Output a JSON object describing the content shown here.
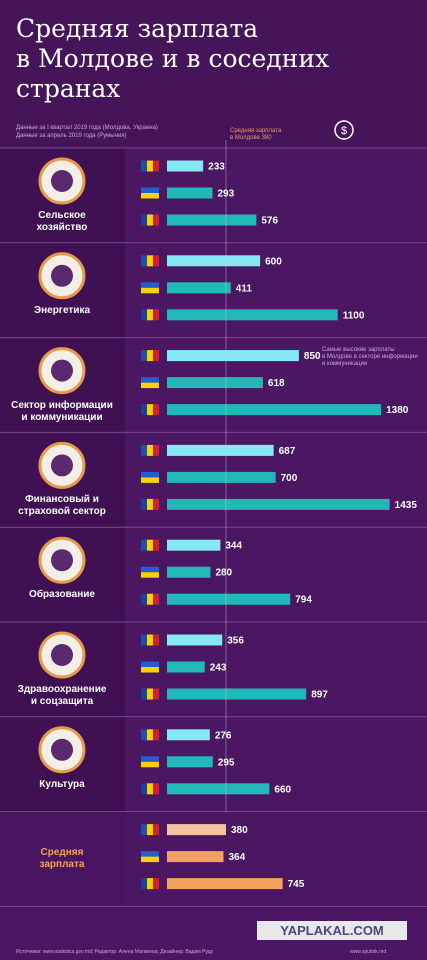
{
  "chart_data": {
    "type": "hbar-groups",
    "title": "Средняя зарплата\nв Молдове и в соседних\nстранах",
    "subtitles": [
      "Данные за I квартал 2019 года (Молдова, Украина)",
      "Данные за апрель 2019 года (Румыния)"
    ],
    "categories": [
      "Сельское\nхозяйство",
      "Энергетика",
      "Сектор информации\nи коммуникации",
      "Финансовый и\nстраховой сектор",
      "Образование",
      "Здравоохранение\nи соцзащита",
      "Культура",
      "Средняя\nзарплата"
    ],
    "series": [
      {
        "values": [
          233,
          600,
          850,
          687,
          344,
          356,
          276,
          380
        ],
        "colors": [
          "#86e8f2",
          "#86e8f2",
          "#86e8f2",
          "#86e8f2",
          "#86e8f2",
          "#86e8f2",
          "#86e8f2",
          "#f6c2a6"
        ]
      },
      {
        "values": [
          293,
          411,
          618,
          700,
          280,
          243,
          295,
          364
        ],
        "colors": [
          "#22b8b8",
          "#22b8b8",
          "#22b8b8",
          "#22b8b8",
          "#22b8b8",
          "#22b8b8",
          "#22b8b8",
          "#f5a15e"
        ]
      },
      {
        "values": [
          576,
          1100,
          1380,
          1435,
          794,
          897,
          660,
          745
        ],
        "colors": [
          "#22b8b8",
          "#22b8b8",
          "#22b8b8",
          "#22b8b8",
          "#22b8b8",
          "#22b8b8",
          "#22b8b8",
          "#f5a15e"
        ]
      }
    ],
    "xlim": [
      0,
      1450
    ],
    "reference_line": {
      "value": 380,
      "label": "Средняя зарплата\nв Молдове 380"
    },
    "annotation": "Самые высокие зарплаты\nв Молдове в секторе информации\nи коммуникации",
    "footer": "Источники: www.statistica.gov.md; Редактор: Алена Матвеева; Дизайнер: Вадим Руду",
    "footer_site": "www.sputnik.md",
    "watermark": "YAPLAKAL.COM"
  }
}
